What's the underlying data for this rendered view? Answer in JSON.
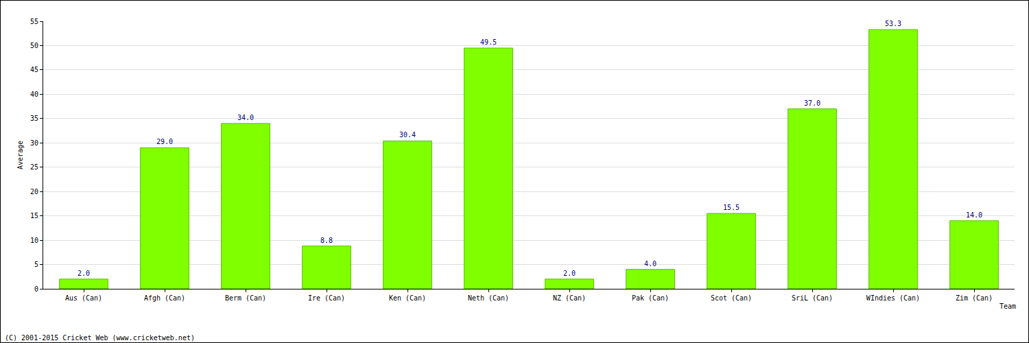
{
  "chart_data": {
    "type": "bar",
    "categories": [
      "Aus (Can)",
      "Afgh (Can)",
      "Berm (Can)",
      "Ire (Can)",
      "Ken (Can)",
      "Neth (Can)",
      "NZ (Can)",
      "Pak (Can)",
      "Scot (Can)",
      "SriL (Can)",
      "WIndies (Can)",
      "Zim (Can)"
    ],
    "values": [
      2.0,
      29.0,
      34.0,
      8.8,
      30.4,
      49.5,
      2.0,
      4.0,
      15.5,
      37.0,
      53.3,
      14.0
    ],
    "value_labels": [
      "2.0",
      "29.0",
      "34.0",
      "8.8",
      "30.4",
      "49.5",
      "2.0",
      "4.0",
      "15.5",
      "37.0",
      "53.3",
      "14.0"
    ],
    "data_labels": true,
    "color": "#80ff00",
    "xlabel": "Team",
    "ylabel": "Average",
    "ylim": [
      0,
      55
    ],
    "yticks": [
      0,
      5,
      10,
      15,
      20,
      25,
      30,
      35,
      40,
      45,
      50,
      55
    ],
    "grid": true,
    "annotations": [
      "(C) 2001-2015 Cricket Web (www.cricketweb.net)"
    ]
  }
}
